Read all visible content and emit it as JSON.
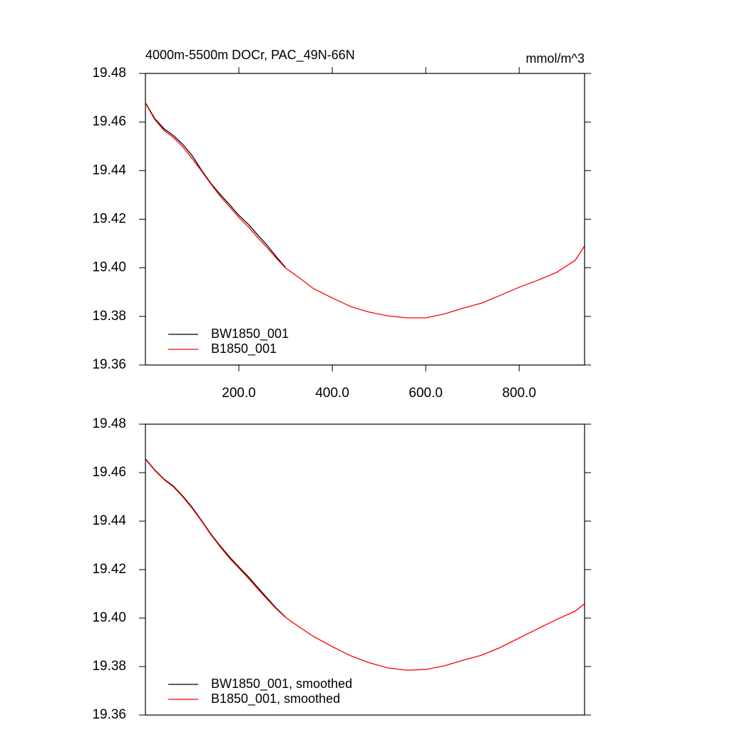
{
  "chart_data": [
    {
      "type": "line",
      "title": "4000m-5500m DOCr, PAC_49N-66N",
      "units": "mmol/m^3",
      "x": [
        1,
        20,
        40,
        60,
        80,
        100,
        120,
        140,
        160,
        180,
        200,
        220,
        240,
        260,
        280,
        300,
        330,
        360,
        400,
        440,
        480,
        520,
        560,
        600,
        640,
        680,
        720,
        760,
        800,
        840,
        880,
        920,
        940
      ],
      "xlim": [
        0,
        940
      ],
      "xticks": [
        {
          "value": 200,
          "label": "200.0"
        },
        {
          "value": 400,
          "label": "400.0"
        },
        {
          "value": 600,
          "label": "600.0"
        },
        {
          "value": 800,
          "label": "800.0"
        }
      ],
      "ylim": [
        19.36,
        19.48
      ],
      "yticks": [
        19.36,
        19.38,
        {
          "value": 19.4,
          "label": "19.40"
        },
        19.42,
        19.44,
        19.46,
        19.48
      ],
      "series": [
        {
          "name": "BW1850_001",
          "color": "#000000",
          "values": [
            19.4676,
            19.4614,
            19.4572,
            19.4544,
            19.4508,
            19.4462,
            19.4402,
            19.4348,
            19.4302,
            19.426,
            19.4216,
            19.418,
            19.4136,
            19.4094,
            19.4046,
            19.4001,
            null,
            null,
            null,
            null,
            null,
            null,
            null,
            null,
            null,
            null,
            null,
            null,
            null,
            null,
            null,
            null,
            null
          ]
        },
        {
          "name": "B1850_001",
          "color": "#ff0000",
          "values": [
            19.4674,
            19.461,
            19.4565,
            19.4536,
            19.4498,
            19.445,
            19.4398,
            19.4345,
            19.4295,
            19.4251,
            19.4207,
            19.4169,
            19.4125,
            19.4084,
            19.404,
            19.3999,
            19.3958,
            19.3914,
            19.3876,
            19.384,
            19.3817,
            19.3802,
            19.3794,
            19.3794,
            19.381,
            19.3834,
            19.3855,
            19.3887,
            19.392,
            19.3949,
            19.3981,
            19.4031,
            19.409
          ]
        }
      ]
    },
    {
      "type": "line",
      "x": [
        1,
        20,
        40,
        60,
        80,
        100,
        120,
        140,
        160,
        180,
        200,
        220,
        240,
        260,
        280,
        300,
        330,
        360,
        400,
        440,
        480,
        520,
        560,
        600,
        640,
        680,
        720,
        760,
        800,
        840,
        880,
        920,
        940
      ],
      "xlim": [
        0,
        940
      ],
      "ylim": [
        19.36,
        19.48
      ],
      "yticks": [
        19.36,
        19.38,
        {
          "value": 19.4,
          "label": "19.40"
        },
        19.42,
        19.44,
        19.46,
        19.48
      ],
      "series": [
        {
          "name": "BW1850_001, smoothed",
          "color": "#000000",
          "values": [
            19.4655,
            19.4611,
            19.4573,
            19.4544,
            19.4503,
            19.4457,
            19.4403,
            19.4347,
            19.4298,
            19.4252,
            19.4211,
            19.4171,
            19.4127,
            19.4084,
            19.4041,
            19.4004,
            null,
            null,
            null,
            null,
            null,
            null,
            null,
            null,
            null,
            null,
            null,
            null,
            null,
            null,
            null,
            null,
            null
          ]
        },
        {
          "name": "B1850_001, smoothed",
          "color": "#ff0000",
          "values": [
            19.4653,
            19.4609,
            19.4571,
            19.4541,
            19.45,
            19.4453,
            19.44,
            19.4344,
            19.4294,
            19.4247,
            19.4206,
            19.4165,
            19.4121,
            19.4079,
            19.4038,
            19.4003,
            19.3962,
            19.3924,
            19.3882,
            19.3844,
            19.3815,
            19.3794,
            19.3785,
            19.3788,
            19.3803,
            19.3826,
            19.3847,
            19.3879,
            19.3918,
            19.3956,
            19.3994,
            19.4029,
            19.4059
          ]
        }
      ]
    }
  ]
}
